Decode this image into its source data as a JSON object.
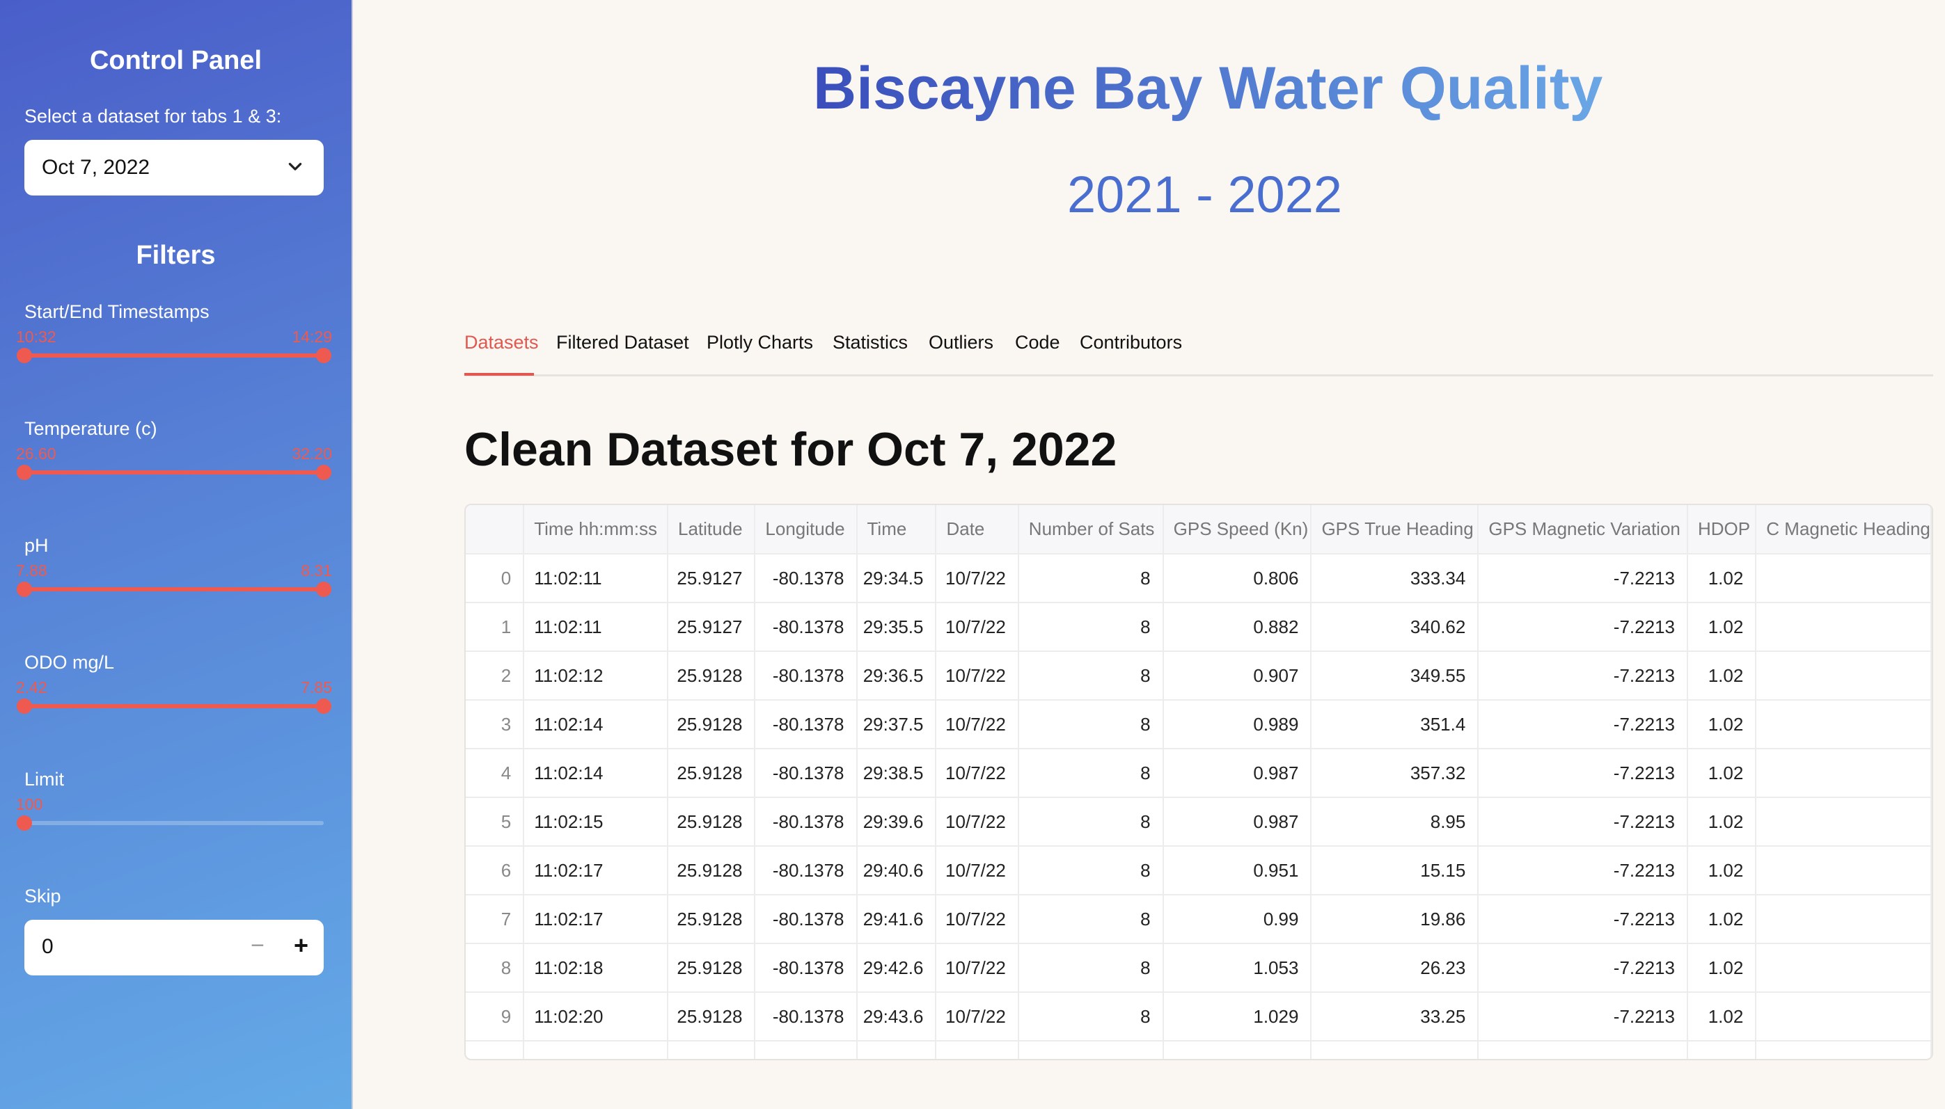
{
  "sidebar": {
    "title": "Control Panel",
    "dataset_label": "Select a dataset for tabs 1 & 3:",
    "dataset_value": "Oct 7, 2022",
    "filters_title": "Filters",
    "timestamps": {
      "label": "Start/End Timestamps",
      "min": "10:32",
      "max": "14:29"
    },
    "temperature": {
      "label": "Temperature (c)",
      "min": "26.60",
      "max": "32.20"
    },
    "ph": {
      "label": "pH",
      "min": "7.88",
      "max": "8.31"
    },
    "odo": {
      "label": "ODO mg/L",
      "min": "2.42",
      "max": "7.85"
    },
    "limit": {
      "label": "Limit",
      "value": "100"
    },
    "skip": {
      "label": "Skip",
      "value": "0",
      "minus": "−",
      "plus": "+"
    }
  },
  "header": {
    "title": "Biscayne Bay Water Quality",
    "subtitle": "2021 - 2022"
  },
  "tabs": [
    {
      "label": "Datasets",
      "active": true
    },
    {
      "label": "Filtered Dataset"
    },
    {
      "label": "Plotly Charts"
    },
    {
      "label": "Statistics"
    },
    {
      "label": "Outliers"
    },
    {
      "label": "Code"
    },
    {
      "label": "Contributors"
    }
  ],
  "section_title": "Clean Dataset for Oct 7, 2022",
  "table": {
    "columns": [
      "",
      "Time hh:mm:ss",
      "Latitude",
      "Longitude",
      "Time",
      "Date",
      "Number of Sats",
      "GPS Speed (Kn)",
      "GPS True Heading",
      "GPS Magnetic Variation",
      "HDOP",
      "C Magnetic Heading"
    ],
    "rows": [
      [
        "0",
        "11:02:11",
        "25.9127",
        "-80.1378",
        "29:34.5",
        "10/7/22",
        "8",
        "0.806",
        "333.34",
        "-7.2213",
        "1.02",
        ""
      ],
      [
        "1",
        "11:02:11",
        "25.9127",
        "-80.1378",
        "29:35.5",
        "10/7/22",
        "8",
        "0.882",
        "340.62",
        "-7.2213",
        "1.02",
        ""
      ],
      [
        "2",
        "11:02:12",
        "25.9128",
        "-80.1378",
        "29:36.5",
        "10/7/22",
        "8",
        "0.907",
        "349.55",
        "-7.2213",
        "1.02",
        ""
      ],
      [
        "3",
        "11:02:14",
        "25.9128",
        "-80.1378",
        "29:37.5",
        "10/7/22",
        "8",
        "0.989",
        "351.4",
        "-7.2213",
        "1.02",
        ""
      ],
      [
        "4",
        "11:02:14",
        "25.9128",
        "-80.1378",
        "29:38.5",
        "10/7/22",
        "8",
        "0.987",
        "357.32",
        "-7.2213",
        "1.02",
        ""
      ],
      [
        "5",
        "11:02:15",
        "25.9128",
        "-80.1378",
        "29:39.6",
        "10/7/22",
        "8",
        "0.987",
        "8.95",
        "-7.2213",
        "1.02",
        ""
      ],
      [
        "6",
        "11:02:17",
        "25.9128",
        "-80.1378",
        "29:40.6",
        "10/7/22",
        "8",
        "0.951",
        "15.15",
        "-7.2213",
        "1.02",
        ""
      ],
      [
        "7",
        "11:02:17",
        "25.9128",
        "-80.1378",
        "29:41.6",
        "10/7/22",
        "8",
        "0.99",
        "19.86",
        "-7.2213",
        "1.02",
        ""
      ],
      [
        "8",
        "11:02:18",
        "25.9128",
        "-80.1378",
        "29:42.6",
        "10/7/22",
        "8",
        "1.053",
        "26.23",
        "-7.2213",
        "1.02",
        ""
      ],
      [
        "9",
        "11:02:20",
        "25.9128",
        "-80.1378",
        "29:43.6",
        "10/7/22",
        "8",
        "1.029",
        "33.25",
        "-7.2213",
        "1.02",
        ""
      ]
    ]
  },
  "colors": {
    "accent": "#e0584f",
    "title_blue": "#3a4ebb",
    "sidebar_top": "#4a5ec9",
    "sidebar_bottom": "#64aae7"
  }
}
